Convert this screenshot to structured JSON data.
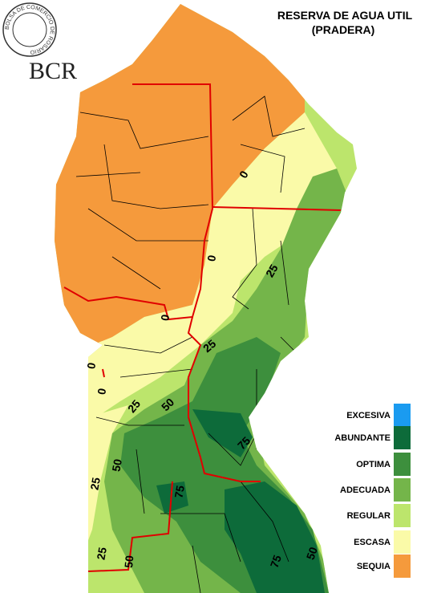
{
  "header": {
    "title": "RESERVA DE AGUA UTIL",
    "subtitle": "(PRADERA)"
  },
  "logo": {
    "text": "BCR",
    "ring": "BOLSA DE COMERCIO DE ROSARIO"
  },
  "legend": [
    {
      "label": "EXCESIVA",
      "color": "#1a9bf0"
    },
    {
      "label": "ABUNDANTE",
      "color": "#0d6b3a"
    },
    {
      "label": "OPTIMA",
      "color": "#3d8f3d"
    },
    {
      "label": "ADECUADA",
      "color": "#74b54a"
    },
    {
      "label": "REGULAR",
      "color": "#bce56c"
    },
    {
      "label": "ESCASA",
      "color": "#fafaa8"
    },
    {
      "label": "SEQUIA",
      "color": "#f59a3c"
    }
  ],
  "contour_labels": [
    0,
    0,
    25,
    0,
    25,
    0,
    0,
    25,
    50,
    50,
    25,
    75,
    75,
    25,
    50,
    75,
    50
  ]
}
